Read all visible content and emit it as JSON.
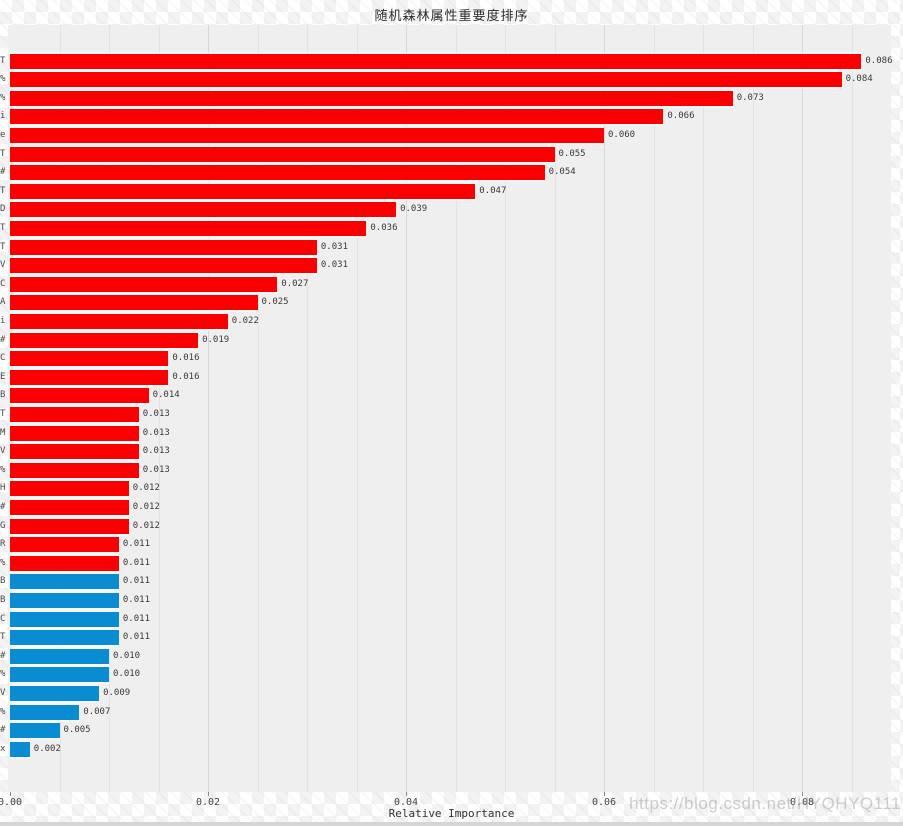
{
  "page": {
    "watermark": "https://blog.csdn.net/HYQHYQ111"
  },
  "colors": {
    "red_bar": "#fb0000",
    "blue_bar": "#0a8cd2",
    "plot_background": "#efefef",
    "grid_minor": "#e3e3e3",
    "grid_major": "#d7d7d7"
  },
  "chart_data": {
    "type": "bar",
    "orientation": "horizontal",
    "title": "随机森林属性重要度排序",
    "xlabel": "Relative Importance",
    "ylabel": "",
    "xlim": [
      0,
      0.089
    ],
    "grid": "vertical gridlines every 0.005, major every 0.02",
    "legend": "none",
    "x_ticks": {
      "values": [
        0,
        0.02,
        0.04,
        0.06,
        0.08
      ],
      "labels": [
        "0.00",
        "0.02",
        "0.04",
        "0.06",
        "0.08"
      ]
    },
    "categories": [
      "T",
      "%",
      "%",
      "i",
      "e",
      "T",
      "#",
      "T",
      "D",
      "T",
      "T",
      "V",
      "C",
      "A",
      "i",
      "#",
      "C",
      "E",
      "B",
      "T",
      "M",
      "V",
      "%",
      "H",
      "#",
      "G",
      "R",
      "%",
      "B",
      "B",
      "C",
      "T",
      "#",
      "%",
      "V",
      "%",
      "#",
      "x"
    ],
    "values": [
      0.086,
      0.084,
      0.073,
      0.066,
      0.06,
      0.055,
      0.054,
      0.047,
      0.039,
      0.036,
      0.031,
      0.031,
      0.027,
      0.025,
      0.022,
      0.019,
      0.016,
      0.016,
      0.014,
      0.013,
      0.013,
      0.013,
      0.013,
      0.012,
      0.012,
      0.012,
      0.011,
      0.011,
      0.011,
      0.011,
      0.011,
      0.011,
      0.01,
      0.01,
      0.009,
      0.007,
      0.005,
      0.002
    ],
    "value_labels": [
      "0.086",
      "0.084",
      "0.073",
      "0.066",
      "0.060",
      "0.055",
      "0.054",
      "0.047",
      "0.039",
      "0.036",
      "0.031",
      "0.031",
      "0.027",
      "0.025",
      "0.022",
      "0.019",
      "0.016",
      "0.016",
      "0.014",
      "0.013",
      "0.013",
      "0.013",
      "0.013",
      "0.012",
      "0.012",
      "0.012",
      "0.011",
      "0.011",
      "0.011",
      "0.011",
      "0.011",
      "0.011",
      "0.010",
      "0.010",
      "0.009",
      "0.007",
      "0.005",
      "0.002"
    ],
    "blue_start_index": 28
  }
}
